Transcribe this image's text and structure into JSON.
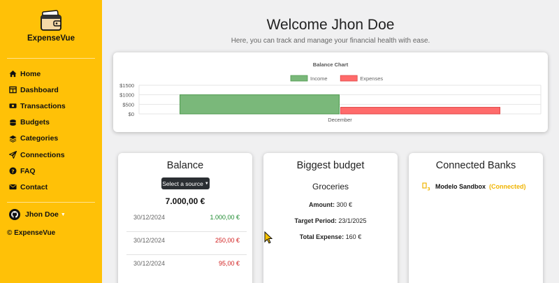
{
  "app": {
    "name": "ExpenseVue",
    "copyright": "© ExpenseVue"
  },
  "sidebar": {
    "items": [
      {
        "label": "Home",
        "icon": "home-icon"
      },
      {
        "label": "Dashboard",
        "icon": "table-icon"
      },
      {
        "label": "Transactions",
        "icon": "money-icon"
      },
      {
        "label": "Budgets",
        "icon": "coins-icon"
      },
      {
        "label": "Categories",
        "icon": "layers-icon"
      },
      {
        "label": "Connections",
        "icon": "paper-plane-icon"
      },
      {
        "label": "FAQ",
        "icon": "question-circle-icon"
      },
      {
        "label": "Contact",
        "icon": "envelope-icon"
      }
    ],
    "user": {
      "name": "Jhon Doe",
      "icon": "github-icon"
    }
  },
  "header": {
    "title": "Welcome Jhon Doe",
    "subtitle": "Here, you can track and manage your financial health with ease."
  },
  "chart_data": {
    "type": "bar",
    "title": "Balance Chart",
    "categories": [
      "December"
    ],
    "series": [
      {
        "name": "Income",
        "values": [
          1000
        ],
        "color": "#7ab87a",
        "border": "#4e9a4e"
      },
      {
        "name": "Expenses",
        "values": [
          345
        ],
        "color": "#ff6b6b",
        "border": "#e04545"
      }
    ],
    "yticks": [
      "$0",
      "$500",
      "$1000",
      "$1500"
    ],
    "ylim": [
      0,
      1500
    ],
    "legend": "top",
    "grid": true
  },
  "balance": {
    "title": "Balance",
    "source_button": "Select a source",
    "total": "7.000,00 €",
    "transactions": [
      {
        "date": "30/12/2024",
        "amount": "1.000,00 €",
        "type": "pos"
      },
      {
        "date": "30/12/2024",
        "amount": "250,00 €",
        "type": "neg"
      },
      {
        "date": "30/12/2024",
        "amount": "95,00 €",
        "type": "neg"
      }
    ]
  },
  "budget": {
    "title": "Biggest budget",
    "name": "Groceries",
    "amount_label": "Amount:",
    "amount": "300 €",
    "period_label": "Target Period:",
    "period": "23/1/2025",
    "expense_label": "Total Expense:",
    "expense": "160 €"
  },
  "banks": {
    "title": "Connected Banks",
    "items": [
      {
        "name": "Modelo Sandbox",
        "status": "(Connected)"
      }
    ]
  },
  "colors": {
    "sidebar": "#ffc107",
    "accent": "#f0b400",
    "positive": "#1c8a2e",
    "negative": "#d11d1d"
  }
}
